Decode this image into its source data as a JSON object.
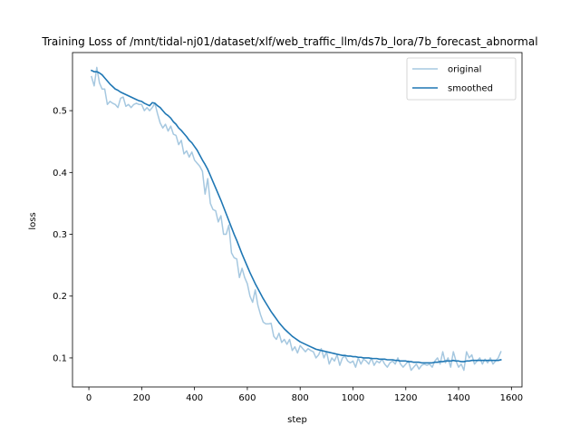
{
  "chart_data": {
    "type": "line",
    "title": "Training Loss of /mnt/tidal-nj01/dataset/xlf/web_traffic_llm/ds7b_lora/7b_forecast_abnormal",
    "xlabel": "step",
    "ylabel": "loss",
    "xlim": [
      -62,
      1640
    ],
    "ylim": [
      0.053,
      0.594
    ],
    "xticks": [
      0,
      200,
      400,
      600,
      800,
      1000,
      1200,
      1400,
      1600
    ],
    "yticks": [
      0.1,
      0.2,
      0.3,
      0.4,
      0.5
    ],
    "grid": false,
    "legend_position": "top-right",
    "series": [
      {
        "name": "original",
        "color": "#a6c8e0",
        "x": [
          10,
          20,
          30,
          40,
          50,
          60,
          70,
          80,
          90,
          100,
          110,
          120,
          130,
          140,
          150,
          160,
          170,
          180,
          190,
          200,
          210,
          220,
          230,
          240,
          250,
          260,
          270,
          280,
          290,
          300,
          310,
          320,
          330,
          340,
          350,
          360,
          370,
          380,
          390,
          400,
          410,
          420,
          430,
          440,
          450,
          460,
          470,
          480,
          490,
          500,
          510,
          520,
          530,
          540,
          550,
          560,
          570,
          580,
          590,
          600,
          610,
          620,
          630,
          640,
          650,
          660,
          670,
          680,
          690,
          700,
          710,
          720,
          730,
          740,
          750,
          760,
          770,
          780,
          790,
          800,
          810,
          820,
          830,
          840,
          850,
          860,
          870,
          880,
          890,
          900,
          910,
          920,
          930,
          940,
          950,
          960,
          970,
          980,
          990,
          1000,
          1010,
          1020,
          1030,
          1040,
          1050,
          1060,
          1070,
          1080,
          1090,
          1100,
          1110,
          1120,
          1130,
          1140,
          1150,
          1160,
          1170,
          1180,
          1190,
          1200,
          1210,
          1220,
          1230,
          1240,
          1250,
          1260,
          1270,
          1280,
          1290,
          1300,
          1310,
          1320,
          1330,
          1340,
          1350,
          1360,
          1370,
          1380,
          1390,
          1400,
          1410,
          1420,
          1430,
          1440,
          1450,
          1460,
          1470,
          1480,
          1490,
          1500,
          1510,
          1520,
          1530,
          1540,
          1550,
          1560
        ],
        "values": [
          0.555,
          0.54,
          0.57,
          0.545,
          0.535,
          0.535,
          0.51,
          0.515,
          0.512,
          0.51,
          0.505,
          0.52,
          0.522,
          0.507,
          0.51,
          0.505,
          0.51,
          0.512,
          0.51,
          0.51,
          0.5,
          0.505,
          0.5,
          0.505,
          0.512,
          0.495,
          0.48,
          0.472,
          0.478,
          0.467,
          0.475,
          0.462,
          0.46,
          0.445,
          0.452,
          0.43,
          0.435,
          0.425,
          0.433,
          0.42,
          0.415,
          0.41,
          0.402,
          0.365,
          0.39,
          0.35,
          0.34,
          0.338,
          0.32,
          0.33,
          0.3,
          0.3,
          0.315,
          0.27,
          0.262,
          0.26,
          0.23,
          0.245,
          0.23,
          0.22,
          0.2,
          0.19,
          0.21,
          0.185,
          0.17,
          0.158,
          0.155,
          0.155,
          0.156,
          0.135,
          0.13,
          0.14,
          0.125,
          0.13,
          0.122,
          0.13,
          0.112,
          0.118,
          0.108,
          0.12,
          0.115,
          0.11,
          0.115,
          0.112,
          0.11,
          0.1,
          0.105,
          0.115,
          0.1,
          0.11,
          0.09,
          0.1,
          0.095,
          0.105,
          0.088,
          0.1,
          0.103,
          0.095,
          0.092,
          0.095,
          0.085,
          0.1,
          0.09,
          0.098,
          0.095,
          0.09,
          0.1,
          0.088,
          0.095,
          0.092,
          0.098,
          0.09,
          0.085,
          0.092,
          0.095,
          0.09,
          0.1,
          0.09,
          0.085,
          0.09,
          0.095,
          0.08,
          0.085,
          0.09,
          0.082,
          0.088,
          0.09,
          0.088,
          0.09,
          0.085,
          0.095,
          0.1,
          0.09,
          0.11,
          0.092,
          0.1,
          0.085,
          0.11,
          0.095,
          0.085,
          0.09,
          0.08,
          0.11,
          0.1,
          0.105,
          0.09,
          0.095,
          0.1,
          0.09,
          0.098,
          0.092,
          0.1,
          0.09,
          0.095,
          0.1,
          0.11
        ]
      },
      {
        "name": "smoothed",
        "color": "#1f77b4",
        "x": [
          10,
          20,
          30,
          40,
          50,
          60,
          70,
          80,
          90,
          100,
          110,
          120,
          130,
          140,
          150,
          160,
          170,
          180,
          190,
          200,
          210,
          220,
          230,
          240,
          250,
          260,
          270,
          280,
          290,
          300,
          310,
          320,
          330,
          340,
          350,
          360,
          370,
          380,
          390,
          400,
          410,
          420,
          430,
          440,
          450,
          460,
          470,
          480,
          490,
          500,
          510,
          520,
          530,
          540,
          550,
          560,
          570,
          580,
          590,
          600,
          610,
          620,
          630,
          640,
          650,
          660,
          670,
          680,
          690,
          700,
          710,
          720,
          730,
          740,
          750,
          760,
          770,
          780,
          790,
          800,
          810,
          820,
          830,
          840,
          850,
          860,
          870,
          880,
          890,
          900,
          910,
          920,
          930,
          940,
          950,
          960,
          970,
          980,
          990,
          1000,
          1010,
          1020,
          1030,
          1040,
          1050,
          1060,
          1070,
          1080,
          1090,
          1100,
          1110,
          1120,
          1130,
          1140,
          1150,
          1160,
          1170,
          1180,
          1190,
          1200,
          1210,
          1220,
          1230,
          1240,
          1250,
          1260,
          1270,
          1280,
          1290,
          1300,
          1310,
          1320,
          1330,
          1340,
          1350,
          1360,
          1370,
          1380,
          1390,
          1400,
          1410,
          1420,
          1430,
          1440,
          1450,
          1460,
          1470,
          1480,
          1490,
          1500,
          1510,
          1520,
          1530,
          1540,
          1550,
          1560
        ],
        "values": [
          0.565,
          0.563,
          0.563,
          0.561,
          0.558,
          0.553,
          0.548,
          0.543,
          0.539,
          0.535,
          0.533,
          0.53,
          0.528,
          0.526,
          0.524,
          0.522,
          0.52,
          0.518,
          0.516,
          0.515,
          0.512,
          0.51,
          0.508,
          0.513,
          0.512,
          0.508,
          0.505,
          0.5,
          0.495,
          0.492,
          0.488,
          0.482,
          0.478,
          0.472,
          0.468,
          0.463,
          0.458,
          0.452,
          0.448,
          0.442,
          0.436,
          0.428,
          0.42,
          0.413,
          0.405,
          0.395,
          0.385,
          0.375,
          0.365,
          0.355,
          0.344,
          0.333,
          0.322,
          0.311,
          0.3,
          0.29,
          0.279,
          0.268,
          0.258,
          0.248,
          0.238,
          0.229,
          0.22,
          0.212,
          0.204,
          0.196,
          0.189,
          0.182,
          0.175,
          0.169,
          0.163,
          0.157,
          0.152,
          0.147,
          0.143,
          0.139,
          0.135,
          0.132,
          0.129,
          0.126,
          0.124,
          0.122,
          0.12,
          0.118,
          0.116,
          0.114,
          0.113,
          0.112,
          0.111,
          0.11,
          0.109,
          0.108,
          0.107,
          0.106,
          0.105,
          0.104,
          0.104,
          0.103,
          0.103,
          0.102,
          0.102,
          0.101,
          0.101,
          0.1,
          0.1,
          0.1,
          0.099,
          0.099,
          0.099,
          0.098,
          0.098,
          0.098,
          0.097,
          0.097,
          0.097,
          0.096,
          0.096,
          0.095,
          0.095,
          0.095,
          0.094,
          0.094,
          0.093,
          0.093,
          0.093,
          0.092,
          0.092,
          0.092,
          0.092,
          0.092,
          0.093,
          0.093,
          0.094,
          0.094,
          0.095,
          0.095,
          0.095,
          0.096,
          0.095,
          0.095,
          0.094,
          0.094,
          0.095,
          0.095,
          0.096,
          0.096,
          0.096,
          0.096,
          0.096,
          0.096,
          0.096,
          0.096,
          0.096,
          0.096,
          0.096,
          0.097
        ]
      }
    ]
  }
}
